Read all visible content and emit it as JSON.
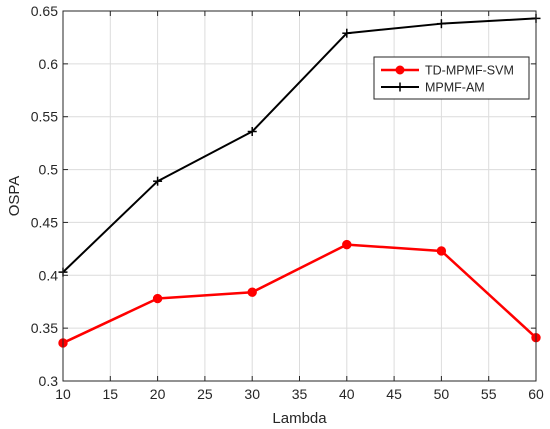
{
  "chart_data": {
    "type": "line",
    "xlabel": "Lambda",
    "ylabel": "OSPA",
    "x": [
      10,
      20,
      30,
      40,
      50,
      60
    ],
    "xlim": [
      10,
      60
    ],
    "ylim": [
      0.3,
      0.65
    ],
    "xticks": [
      10,
      15,
      20,
      25,
      30,
      35,
      40,
      45,
      50,
      55,
      60
    ],
    "yticks": [
      0.3,
      0.35,
      0.4,
      0.45,
      0.5,
      0.55,
      0.6,
      0.65
    ],
    "xtick_labels": [
      "10",
      "15",
      "20",
      "25",
      "30",
      "35",
      "40",
      "45",
      "50",
      "55",
      "60"
    ],
    "ytick_labels": [
      "0.3",
      "0.35",
      "0.4",
      "0.45",
      "0.5",
      "0.55",
      "0.6",
      "0.65"
    ],
    "grid": true,
    "legend_position": "top-right",
    "series": [
      {
        "name": "TD-MPMF-SVM",
        "values": [
          0.336,
          0.378,
          0.384,
          0.429,
          0.423,
          0.341
        ],
        "color": "#ff0000",
        "marker": "circle"
      },
      {
        "name": "MPMF-AM",
        "values": [
          0.403,
          0.489,
          0.536,
          0.629,
          0.638,
          0.643
        ],
        "color": "#000000",
        "marker": "plus"
      }
    ]
  }
}
